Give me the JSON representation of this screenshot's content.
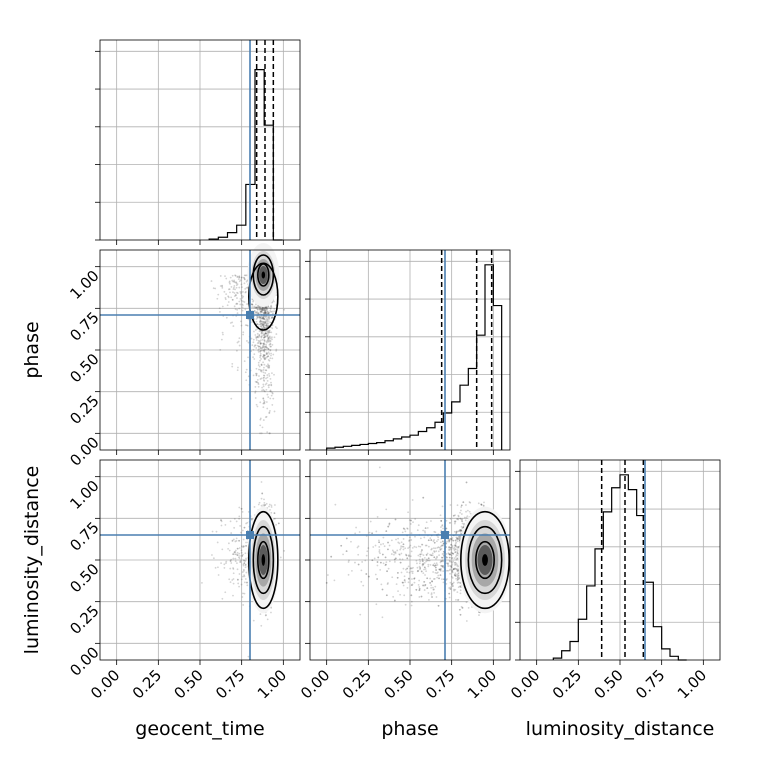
{
  "colors": {
    "truth": "#4a7fb0",
    "hist": "#000000",
    "grid": "#b0b0b0",
    "points": "#555555"
  },
  "chart_data": {
    "type": "corner",
    "parameters": [
      "geocent_time",
      "phase",
      "luminosity_distance"
    ],
    "axis_range": [
      -0.1,
      1.1
    ],
    "ticks": [
      0.0,
      0.25,
      0.5,
      0.75,
      1.0
    ],
    "tick_labels": [
      "0.00",
      "0.25",
      "0.50",
      "0.75",
      "1.00"
    ],
    "grid": true,
    "truths": {
      "geocent_time": 0.8,
      "phase": 0.71,
      "luminosity_distance": 0.65
    },
    "quantiles": {
      "geocent_time": [
        0.84,
        0.89,
        0.94
      ],
      "phase": [
        0.69,
        0.9,
        0.99
      ],
      "luminosity_distance": [
        0.39,
        0.53,
        0.64
      ]
    },
    "histograms": {
      "geocent_time": {
        "bin_edges": [
          0.555,
          0.61,
          0.665,
          0.72,
          0.775,
          0.83,
          0.885,
          0.94,
          0.995
        ],
        "counts": [
          0.005,
          0.015,
          0.04,
          0.08,
          0.3,
          0.92,
          0.62,
          0.0
        ]
      },
      "phase": {
        "bin_edges": [
          0.0,
          0.05,
          0.1,
          0.15,
          0.2,
          0.25,
          0.3,
          0.35,
          0.4,
          0.45,
          0.5,
          0.55,
          0.6,
          0.65,
          0.7,
          0.75,
          0.8,
          0.85,
          0.9,
          0.95,
          1.0,
          1.05
        ],
        "counts": [
          0.01,
          0.015,
          0.02,
          0.025,
          0.03,
          0.035,
          0.04,
          0.05,
          0.06,
          0.07,
          0.08,
          0.1,
          0.12,
          0.15,
          0.2,
          0.26,
          0.35,
          0.44,
          0.62,
          1.0,
          0.78
        ]
      },
      "luminosity_distance": {
        "bin_edges": [
          0.1,
          0.15,
          0.2,
          0.25,
          0.3,
          0.35,
          0.4,
          0.45,
          0.5,
          0.55,
          0.6,
          0.65,
          0.7,
          0.75,
          0.8,
          0.85,
          0.9
        ],
        "counts": [
          0.01,
          0.05,
          0.1,
          0.22,
          0.4,
          0.6,
          0.8,
          0.93,
          1.0,
          0.92,
          0.78,
          0.42,
          0.18,
          0.06,
          0.02,
          0.0
        ]
      }
    },
    "panels_2d": [
      {
        "x": "geocent_time",
        "y": "phase",
        "peak": [
          0.88,
          0.95
        ]
      },
      {
        "x": "geocent_time",
        "y": "luminosity_distance",
        "peak": [
          0.88,
          0.5
        ]
      },
      {
        "x": "phase",
        "y": "luminosity_distance",
        "peak": [
          0.95,
          0.5
        ]
      }
    ]
  }
}
